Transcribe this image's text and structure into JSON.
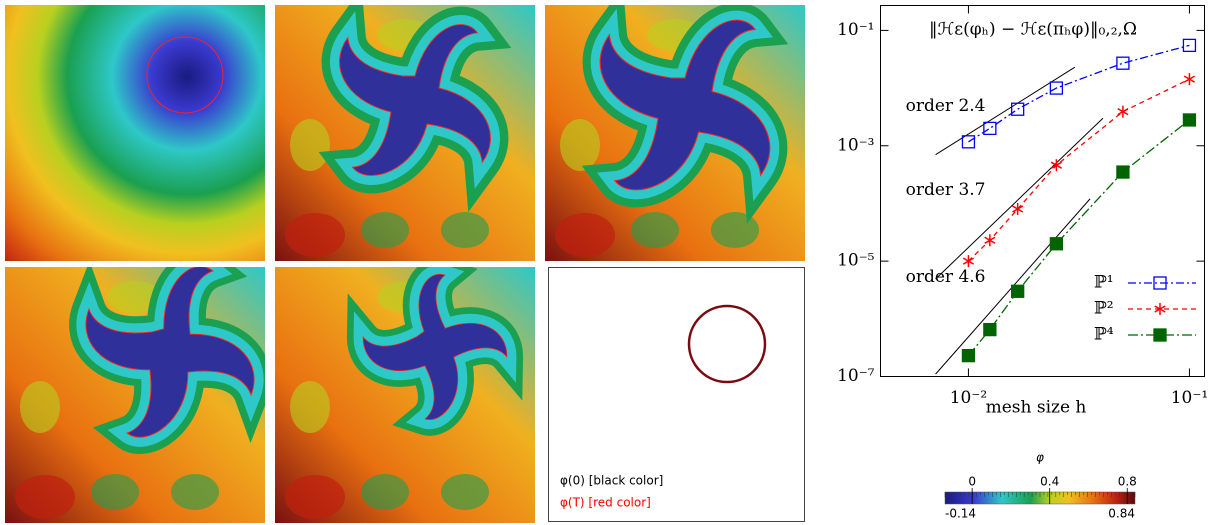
{
  "chart_data": {
    "type": "line",
    "log_x": true,
    "log_y": true,
    "annotation": "‖ℋε(φₕ) − ℋε(πₕφ)‖₀,₂,Ω",
    "xlabel": "mesh size h",
    "xlim": [
      0.004,
      0.117
    ],
    "ylim": [
      1e-07,
      0.27
    ],
    "xticks": [
      {
        "value": 0.01,
        "label": "10⁻²"
      },
      {
        "value": 0.1,
        "label": "10⁻¹"
      }
    ],
    "yticks": [
      {
        "value": 1e-07,
        "label": "10⁻⁷"
      },
      {
        "value": 1e-05,
        "label": "10⁻⁵"
      },
      {
        "value": 0.001,
        "label": "10⁻³"
      },
      {
        "value": 0.1,
        "label": "10⁻¹"
      }
    ],
    "legend": "lower right",
    "series": [
      {
        "name": "ℙ¹",
        "color": "#0000ff",
        "marker": "open-square",
        "dash": "8 3 2 3",
        "x": [
          0.01,
          0.0125,
          0.0167,
          0.025,
          0.05,
          0.1
        ],
        "values": [
          0.00117,
          0.002,
          0.0043,
          0.01,
          0.027,
          0.055
        ]
      },
      {
        "name": "ℙ²",
        "color": "#ff0000",
        "marker": "asterisk",
        "dash": "5 4",
        "x": [
          0.01,
          0.0125,
          0.0167,
          0.025,
          0.05,
          0.1
        ],
        "values": [
          1e-05,
          2.3e-05,
          8e-05,
          0.00046,
          0.0039,
          0.0143
        ]
      },
      {
        "name": "ℙ⁴",
        "color": "#006400",
        "marker": "filled-square",
        "dash": "10 3 2 3",
        "x": [
          0.01,
          0.0125,
          0.0167,
          0.025,
          0.05,
          0.1
        ],
        "values": [
          2.3e-07,
          6.5e-07,
          3e-06,
          2e-05,
          0.00035,
          0.0028
        ]
      }
    ],
    "reference_lines": [
      {
        "label": "order 2.4",
        "x": [
          0.0071,
          0.0303
        ],
        "y": [
          0.0007,
          0.023
        ]
      },
      {
        "label": "order 3.7",
        "x": [
          0.0071,
          0.0406
        ],
        "y": [
          4.9e-06,
          0.003
        ]
      },
      {
        "label": "order 4.6",
        "x": [
          0.0071,
          0.0355
        ],
        "y": [
          1.1e-07,
          0.00012
        ]
      }
    ]
  },
  "legend_panel": {
    "items": [
      {
        "text": "φ(0) [black color]",
        "color": "#000000"
      },
      {
        "text": "φ(T) [red color]",
        "color": "#ff0000"
      }
    ]
  },
  "colorbar": {
    "label": "φ",
    "lim": [
      -0.14,
      0.84
    ],
    "ticks": [
      0,
      0.4,
      0.8
    ]
  }
}
